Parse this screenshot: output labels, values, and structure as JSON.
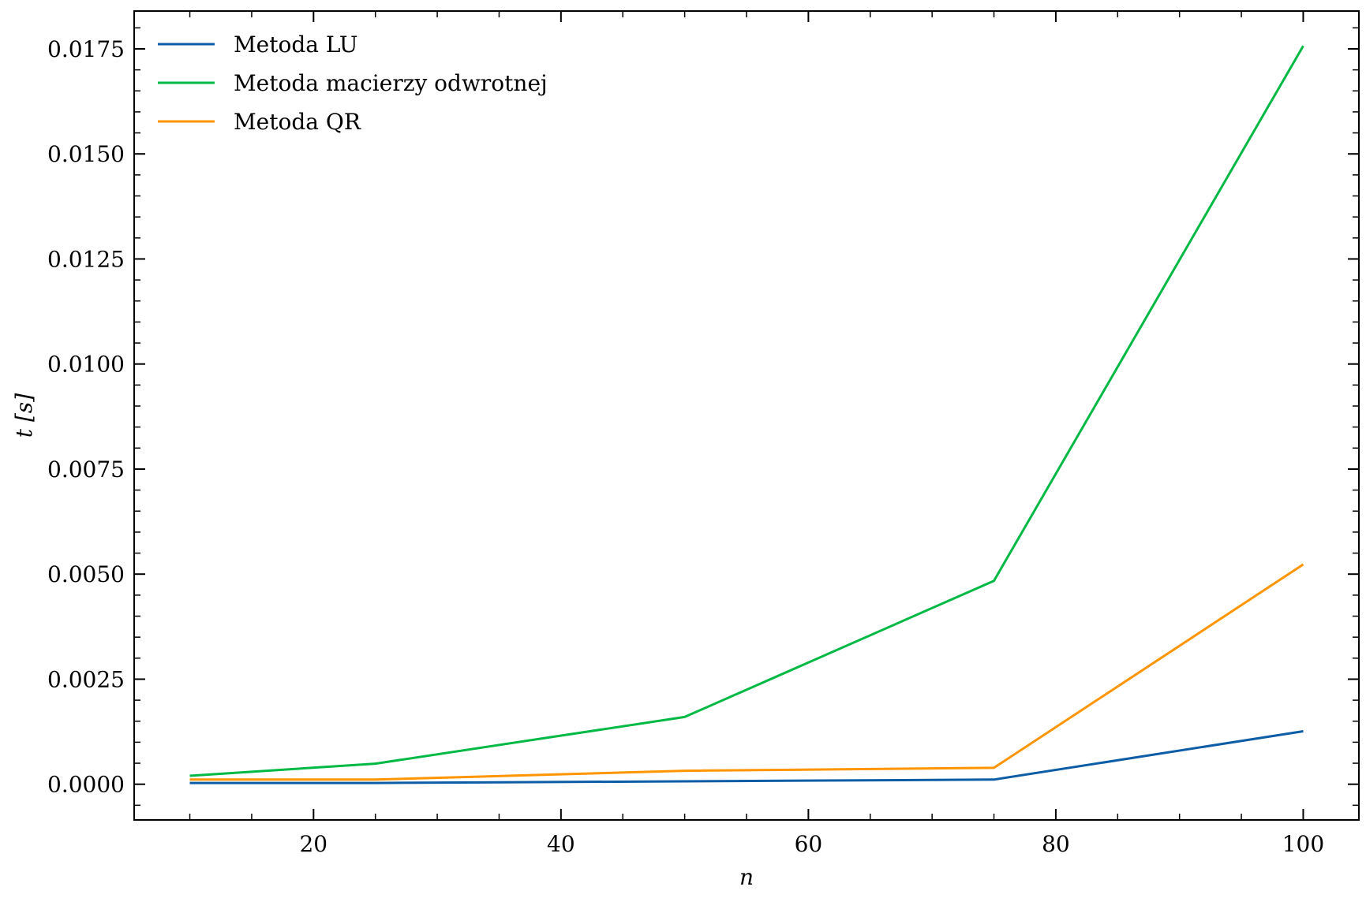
{
  "chart_data": {
    "type": "line",
    "title": "",
    "xlabel": "n",
    "ylabel": "t [s]",
    "xlim": [
      5.5,
      104.5
    ],
    "ylim": [
      -0.00085,
      0.0184
    ],
    "xticks": [
      20,
      40,
      60,
      80,
      100
    ],
    "xtick_labels": [
      "20",
      "40",
      "60",
      "80",
      "100"
    ],
    "xminor_step": 5,
    "yticks": [
      0.0,
      0.0025,
      0.005,
      0.0075,
      0.01,
      0.0125,
      0.015,
      0.0175
    ],
    "ytick_labels": [
      "0.0000",
      "0.0025",
      "0.0050",
      "0.0075",
      "0.0100",
      "0.0125",
      "0.0150",
      "0.0175"
    ],
    "yminor_step": 0.0005,
    "grid": false,
    "legend_position": "top-left",
    "x": [
      10,
      25,
      50,
      75,
      100
    ],
    "series": [
      {
        "name": "Metoda LU",
        "color": "#0C5DA5",
        "values": [
          3e-05,
          3e-05,
          7e-05,
          0.00011,
          0.00126
        ]
      },
      {
        "name": "Metoda macierzy odwrotnej",
        "color": "#00B945",
        "values": [
          0.0002,
          0.00049,
          0.0016,
          0.00484,
          0.01757
        ]
      },
      {
        "name": "Metoda QR",
        "color": "#FF9500",
        "values": [
          0.00011,
          0.00011,
          0.00032,
          0.00039,
          0.00523
        ]
      }
    ]
  }
}
